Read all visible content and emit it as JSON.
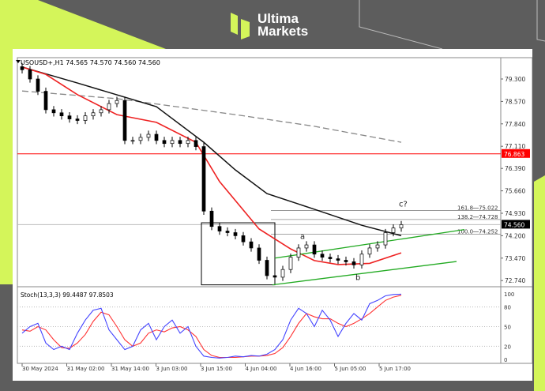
{
  "brand": {
    "name_line1": "Ultima",
    "name_line2": "Markets",
    "accent": "#d4f55a",
    "background": "#5d5d5d"
  },
  "chart_data": {
    "type": "candlestick",
    "title": "USOUSD+,H1  74.565 74.570 74.560 74.560",
    "symbol": "USOUSD+,H1",
    "ohlc_header": [
      "74.565",
      "74.570",
      "74.560",
      "74.560"
    ],
    "price_ticks": [
      "79.300",
      "78.570",
      "77.840",
      "77.110",
      "76.390",
      "75.660",
      "74.930",
      "74.200",
      "73.470",
      "72.740"
    ],
    "ylim": [
      72.6,
      79.9
    ],
    "time_ticks": [
      "30 May 2024",
      "31 May 02:00",
      "31 May 14:00",
      "3 Jun 03:00",
      "3 Jun 15:00",
      "4 Jun 04:00",
      "4 Jun 16:00",
      "5 Jun 05:00",
      "5 Jun 17:00"
    ],
    "closes": [
      79.6,
      79.3,
      78.9,
      78.3,
      78.2,
      78.1,
      78.0,
      77.95,
      78.1,
      78.2,
      78.3,
      78.5,
      78.6,
      77.3,
      77.3,
      77.4,
      77.5,
      77.3,
      77.2,
      77.3,
      77.2,
      77.3,
      77.1,
      75.0,
      74.5,
      74.35,
      74.3,
      74.2,
      74.0,
      73.8,
      73.4,
      72.9,
      72.85,
      73.1,
      73.5,
      73.8,
      73.9,
      73.6,
      73.5,
      73.45,
      73.4,
      73.35,
      73.25,
      73.6,
      73.8,
      73.9,
      74.3,
      74.45,
      74.56
    ],
    "ma_black": [
      [
        0,
        79.69
      ],
      [
        7,
        79.17
      ],
      [
        17,
        78.4
      ],
      [
        23,
        77.24
      ],
      [
        27,
        76.34
      ],
      [
        31,
        75.57
      ],
      [
        37,
        75.06
      ],
      [
        43,
        74.54
      ],
      [
        48,
        74.2
      ]
    ],
    "ma_red": [
      [
        0,
        79.69
      ],
      [
        3,
        79.45
      ],
      [
        7,
        78.79
      ],
      [
        12,
        78.14
      ],
      [
        17,
        77.89
      ],
      [
        22,
        77.24
      ],
      [
        25,
        75.96
      ],
      [
        30,
        74.42
      ],
      [
        34,
        73.77
      ],
      [
        37,
        73.39
      ],
      [
        40,
        73.26
      ],
      [
        44,
        73.3
      ],
      [
        48,
        73.64
      ]
    ],
    "ma_gray_dashed": [
      [
        0,
        78.91
      ],
      [
        12,
        78.66
      ],
      [
        27,
        78.14
      ],
      [
        37,
        77.76
      ],
      [
        48,
        77.24
      ]
    ],
    "horizontal_red": {
      "price": 76.863,
      "label": "76.863",
      "color": "#ff0000"
    },
    "current_price": {
      "price": 74.56,
      "label": "74.560"
    },
    "fib_levels": [
      {
        "label": "161.8",
        "value": "75.022",
        "price": 75.022
      },
      {
        "label": "138.2",
        "value": "74.728",
        "price": 74.728
      },
      {
        "label": "100.0",
        "value": "74.252",
        "price": 74.252
      }
    ],
    "box": {
      "from_index": 23,
      "to_index": 32,
      "high": 74.62,
      "low": 72.6
    },
    "channel_upper": [
      [
        32,
        73.47
      ],
      [
        56,
        74.4
      ]
    ],
    "channel_lower": [
      [
        31.7,
        72.6
      ],
      [
        55,
        73.36
      ]
    ],
    "wave_labels": [
      {
        "text": "a",
        "index": 35.2,
        "price": 74.1
      },
      {
        "text": "b",
        "index": 42.2,
        "price": 72.76
      },
      {
        "text": "c?",
        "index": 47.7,
        "price": 75.15
      }
    ],
    "stoch": {
      "title": "Stoch(13,3,3) 99.4487 97.8503",
      "levels": [
        "100",
        "80",
        "50",
        "20",
        "0"
      ],
      "main": [
        40,
        50,
        55,
        25,
        15,
        20,
        15,
        40,
        60,
        75,
        78,
        45,
        30,
        15,
        20,
        45,
        55,
        30,
        50,
        60,
        40,
        50,
        20,
        5,
        3,
        2,
        3,
        5,
        4,
        6,
        5,
        8,
        15,
        30,
        60,
        78,
        70,
        50,
        75,
        60,
        35,
        55,
        70,
        60,
        85,
        90,
        97,
        99,
        99.4487
      ],
      "signal": [
        45,
        43,
        50,
        45,
        30,
        18,
        17,
        25,
        38,
        58,
        72,
        68,
        50,
        30,
        20,
        25,
        40,
        45,
        42,
        48,
        50,
        45,
        35,
        15,
        6,
        3,
        3,
        3,
        4,
        5,
        5,
        6,
        9,
        18,
        35,
        55,
        70,
        65,
        62,
        62,
        55,
        50,
        55,
        62,
        70,
        80,
        90,
        95,
        97.8503
      ],
      "main_color": "#4444ff",
      "signal_color": "#ff3333"
    }
  }
}
